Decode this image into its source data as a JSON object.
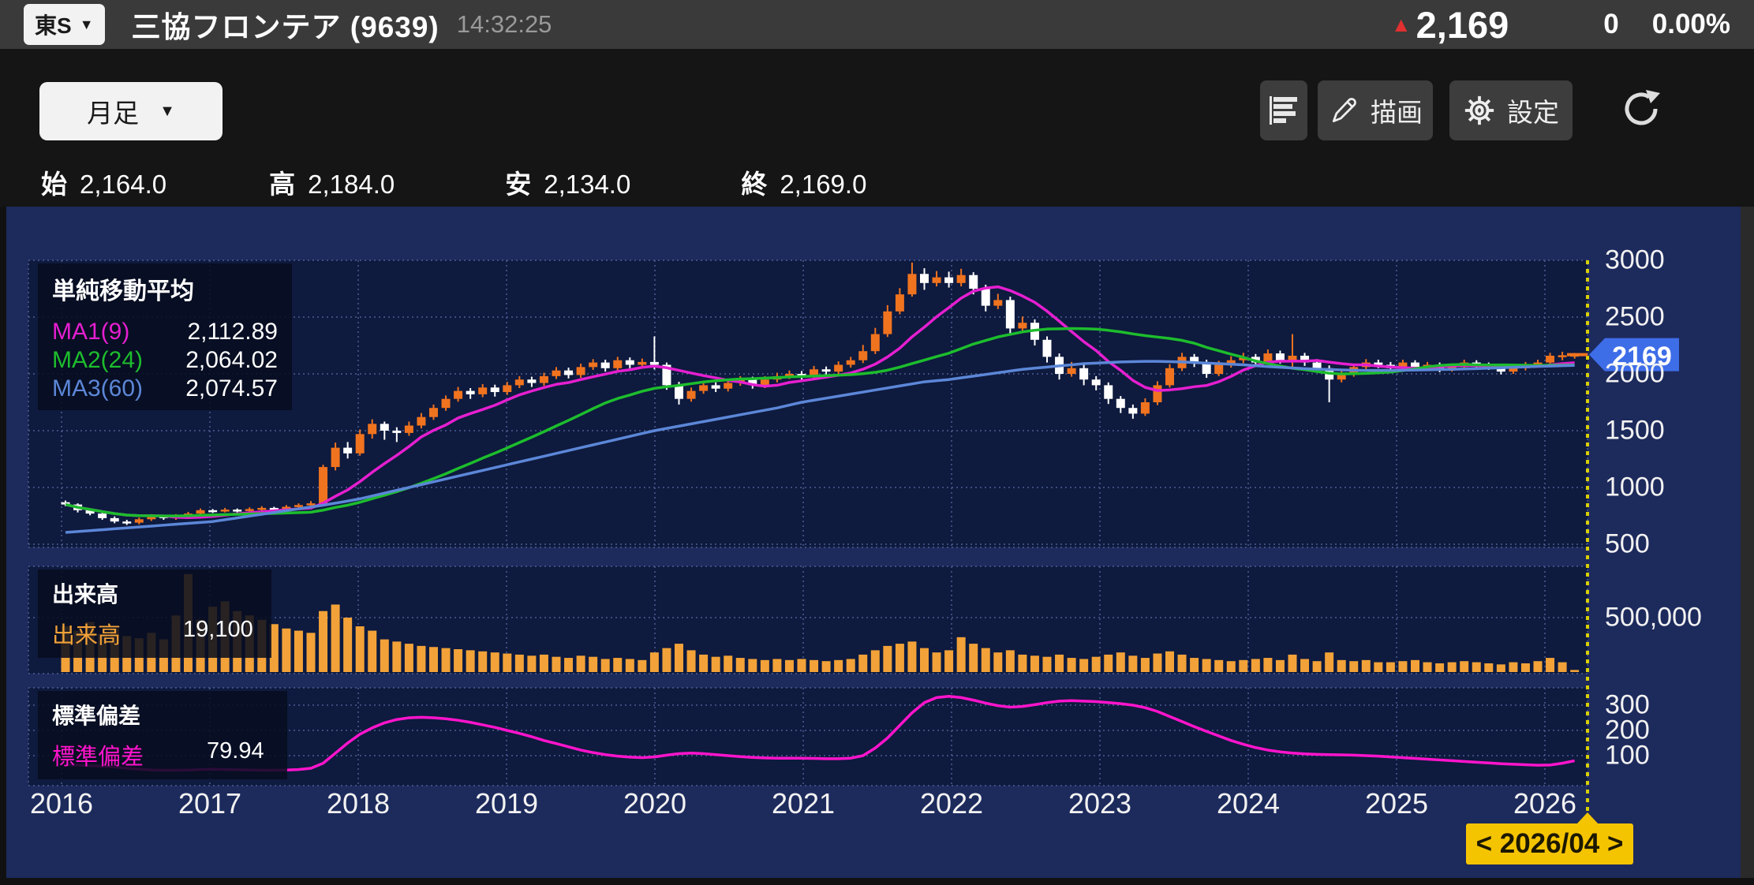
{
  "header": {
    "market_badge": "東S",
    "dropdown_symbol": "▼",
    "stock_title": "三協フロンテア (9639)",
    "time": "14:32:25",
    "up_symbol": "▲",
    "price": "2,169",
    "change": "0",
    "change_percent": "0.00%"
  },
  "toolbar": {
    "timeframe": "月足",
    "dropdown_symbol": "▼",
    "draw": "描画",
    "settings": "設定"
  },
  "ohlc": {
    "open_label": "始",
    "open_value": "2,164.0",
    "high_label": "高",
    "high_value": "2,184.0",
    "low_label": "安",
    "low_value": "2,134.0",
    "close_label": "終",
    "close_value": "2,169.0"
  },
  "ma_legend": {
    "title": "単純移動平均",
    "items": [
      {
        "label": "MA1(9)",
        "value": "2,112.89",
        "color": "#e51fd0"
      },
      {
        "label": "MA2(24)",
        "value": "2,064.02",
        "color": "#1dbd2d"
      },
      {
        "label": "MA3(60)",
        "value": "2,074.57",
        "color": "#5c87d8"
      }
    ]
  },
  "volume_legend": {
    "title": "出来高",
    "label": "出来高",
    "value": "19,100"
  },
  "stddev_legend": {
    "title": "標準偏差",
    "label": "標準偏差",
    "value": "79.94"
  },
  "price_tag": "2169",
  "date_nav": "< 2026/04 >",
  "chart_data": {
    "type": "candlestick+volume+line",
    "interval": "month",
    "start": "2016-01",
    "end": "2026-04",
    "title": "三協フロンテア (9639) 月足",
    "legend_position": "top-left",
    "grid": true,
    "price_ticks": [
      3000,
      2500,
      2000,
      1500,
      1000,
      500
    ],
    "price_range": [
      330,
      3050
    ],
    "volume_ticks": [
      {
        "label": "500,000",
        "value": 500000
      }
    ],
    "stddev_ticks": [
      300,
      200,
      100
    ],
    "years": [
      2016,
      2017,
      2018,
      2019,
      2020,
      2021,
      2022,
      2023,
      2024,
      2025,
      2026
    ],
    "current_price": 2169,
    "current_month_label": "2026/04",
    "ma_periods": [
      9,
      24,
      60
    ],
    "colors": {
      "up_candle": "#f0731f",
      "down_candle": "#ffffff",
      "volume_bar": "#f2a238",
      "ma1": "#e51fd0",
      "ma2": "#1dbd2d",
      "ma3": "#5c87d8",
      "stddev_line": "#ff14cc",
      "price_tag_bg": "#3e6de8",
      "date_tag_bg": "#f5c400",
      "grid": "#4d5d92",
      "pane_bg": "#0e1a3e",
      "frame_bg": "#1d2a5c",
      "current_line": "#d8d000"
    },
    "candles": [
      [
        870,
        885,
        835,
        850
      ],
      [
        850,
        860,
        780,
        800
      ],
      [
        800,
        815,
        755,
        770
      ],
      [
        770,
        785,
        715,
        730
      ],
      [
        730,
        745,
        685,
        700
      ],
      [
        700,
        715,
        670,
        690
      ],
      [
        690,
        735,
        675,
        720
      ],
      [
        720,
        765,
        705,
        750
      ],
      [
        750,
        760,
        715,
        730
      ],
      [
        730,
        765,
        715,
        750
      ],
      [
        750,
        785,
        735,
        770
      ],
      [
        770,
        815,
        755,
        800
      ],
      [
        800,
        810,
        775,
        790
      ],
      [
        790,
        820,
        780,
        805
      ],
      [
        805,
        815,
        780,
        795
      ],
      [
        795,
        825,
        785,
        810
      ],
      [
        810,
        835,
        795,
        820
      ],
      [
        820,
        830,
        795,
        810
      ],
      [
        810,
        845,
        800,
        830
      ],
      [
        830,
        860,
        815,
        845
      ],
      [
        845,
        880,
        830,
        860
      ],
      [
        860,
        1200,
        850,
        1180
      ],
      [
        1180,
        1395,
        1150,
        1350
      ],
      [
        1350,
        1400,
        1255,
        1300
      ],
      [
        1300,
        1510,
        1280,
        1470
      ],
      [
        1470,
        1600,
        1430,
        1560
      ],
      [
        1560,
        1580,
        1420,
        1500
      ],
      [
        1500,
        1530,
        1400,
        1480
      ],
      [
        1480,
        1580,
        1455,
        1545
      ],
      [
        1545,
        1655,
        1520,
        1620
      ],
      [
        1620,
        1730,
        1595,
        1700
      ],
      [
        1700,
        1810,
        1675,
        1780
      ],
      [
        1780,
        1885,
        1755,
        1850
      ],
      [
        1850,
        1875,
        1780,
        1820
      ],
      [
        1820,
        1910,
        1795,
        1880
      ],
      [
        1880,
        1905,
        1800,
        1840
      ],
      [
        1840,
        1930,
        1815,
        1900
      ],
      [
        1900,
        1980,
        1875,
        1950
      ],
      [
        1950,
        1975,
        1885,
        1920
      ],
      [
        1920,
        2010,
        1895,
        1980
      ],
      [
        1980,
        2060,
        1955,
        2030
      ],
      [
        2030,
        2055,
        1960,
        1990
      ],
      [
        1990,
        2090,
        1965,
        2060
      ],
      [
        2060,
        2130,
        2035,
        2100
      ],
      [
        2100,
        2125,
        2020,
        2050
      ],
      [
        2050,
        2150,
        2025,
        2120
      ],
      [
        2120,
        2145,
        2050,
        2080
      ],
      [
        2080,
        2135,
        2055,
        2105
      ],
      [
        2105,
        2330,
        2040,
        2080
      ],
      [
        2080,
        2100,
        1860,
        1900
      ],
      [
        1900,
        1930,
        1730,
        1780
      ],
      [
        1780,
        1880,
        1755,
        1850
      ],
      [
        1850,
        1930,
        1825,
        1900
      ],
      [
        1900,
        1925,
        1840,
        1870
      ],
      [
        1870,
        1950,
        1845,
        1920
      ],
      [
        1920,
        1980,
        1895,
        1950
      ],
      [
        1950,
        1975,
        1870,
        1900
      ],
      [
        1900,
        1980,
        1875,
        1950
      ],
      [
        1950,
        2010,
        1925,
        1980
      ],
      [
        1980,
        2030,
        1955,
        2000
      ],
      [
        2000,
        2025,
        1950,
        1980
      ],
      [
        1980,
        2070,
        1955,
        2040
      ],
      [
        2040,
        2065,
        1990,
        2020
      ],
      [
        2020,
        2110,
        1995,
        2080
      ],
      [
        2080,
        2150,
        2055,
        2120
      ],
      [
        2120,
        2255,
        2095,
        2200
      ],
      [
        2200,
        2405,
        2175,
        2350
      ],
      [
        2350,
        2605,
        2325,
        2550
      ],
      [
        2550,
        2755,
        2525,
        2700
      ],
      [
        2700,
        2980,
        2680,
        2880
      ],
      [
        2880,
        2930,
        2740,
        2800
      ],
      [
        2800,
        2905,
        2770,
        2850
      ],
      [
        2850,
        2900,
        2760,
        2800
      ],
      [
        2800,
        2925,
        2770,
        2870
      ],
      [
        2870,
        2895,
        2700,
        2750
      ],
      [
        2750,
        2785,
        2550,
        2600
      ],
      [
        2600,
        2705,
        2570,
        2650
      ],
      [
        2650,
        2680,
        2350,
        2400
      ],
      [
        2400,
        2505,
        2370,
        2450
      ],
      [
        2450,
        2480,
        2250,
        2300
      ],
      [
        2300,
        2330,
        2100,
        2150
      ],
      [
        2150,
        2180,
        1950,
        2000
      ],
      [
        2000,
        2105,
        1975,
        2050
      ],
      [
        2050,
        2080,
        1900,
        1950
      ],
      [
        1950,
        1980,
        1855,
        1900
      ],
      [
        1900,
        1925,
        1735,
        1780
      ],
      [
        1780,
        1805,
        1655,
        1700
      ],
      [
        1700,
        1730,
        1605,
        1650
      ],
      [
        1650,
        1785,
        1630,
        1750
      ],
      [
        1750,
        1935,
        1725,
        1900
      ],
      [
        1900,
        2085,
        1880,
        2050
      ],
      [
        2050,
        2185,
        2025,
        2150
      ],
      [
        2150,
        2175,
        2060,
        2100
      ],
      [
        2100,
        2125,
        1965,
        2000
      ],
      [
        2000,
        2115,
        1980,
        2080
      ],
      [
        2080,
        2155,
        2055,
        2120
      ],
      [
        2120,
        2185,
        2095,
        2150
      ],
      [
        2150,
        2175,
        2070,
        2100
      ],
      [
        2100,
        2215,
        2080,
        2180
      ],
      [
        2180,
        2205,
        2090,
        2120
      ],
      [
        2120,
        2350,
        2050,
        2160
      ],
      [
        2160,
        2185,
        2070,
        2100
      ],
      [
        2100,
        2130,
        2020,
        2050
      ],
      [
        2050,
        2075,
        1750,
        1950
      ],
      [
        1950,
        2025,
        1925,
        2000
      ],
      [
        2000,
        2085,
        1975,
        2060
      ],
      [
        2060,
        2130,
        2035,
        2100
      ],
      [
        2100,
        2125,
        2050,
        2080
      ],
      [
        2080,
        2105,
        2020,
        2050
      ],
      [
        2050,
        2125,
        2030,
        2100
      ],
      [
        2100,
        2120,
        2035,
        2060
      ],
      [
        2060,
        2105,
        2040,
        2080
      ],
      [
        2080,
        2100,
        2015,
        2040
      ],
      [
        2040,
        2085,
        2020,
        2060
      ],
      [
        2060,
        2125,
        2040,
        2100
      ],
      [
        2100,
        2120,
        2055,
        2080
      ],
      [
        2080,
        2100,
        2035,
        2060
      ],
      [
        2060,
        2080,
        1995,
        2020
      ],
      [
        2020,
        2075,
        2000,
        2050
      ],
      [
        2050,
        2105,
        2030,
        2080
      ],
      [
        2080,
        2125,
        2055,
        2100
      ],
      [
        2100,
        2185,
        2080,
        2160
      ],
      [
        2160,
        2195,
        2120,
        2164
      ],
      [
        2164,
        2184,
        2134,
        2169
      ]
    ],
    "volumes": [
      420000,
      380000,
      460000,
      350000,
      400000,
      330000,
      310000,
      360000,
      300000,
      520000,
      900000,
      480000,
      600000,
      650000,
      560000,
      520000,
      480000,
      440000,
      400000,
      380000,
      360000,
      560000,
      620000,
      500000,
      420000,
      380000,
      300000,
      280000,
      260000,
      240000,
      230000,
      220000,
      210000,
      200000,
      190000,
      180000,
      170000,
      160000,
      150000,
      160000,
      140000,
      130000,
      150000,
      140000,
      120000,
      130000,
      120000,
      110000,
      180000,
      220000,
      260000,
      200000,
      160000,
      140000,
      150000,
      130000,
      120000,
      110000,
      120000,
      110000,
      120000,
      110000,
      100000,
      110000,
      120000,
      160000,
      200000,
      240000,
      260000,
      280000,
      220000,
      180000,
      200000,
      320000,
      260000,
      220000,
      180000,
      200000,
      160000,
      150000,
      140000,
      160000,
      130000,
      120000,
      140000,
      160000,
      180000,
      150000,
      130000,
      170000,
      190000,
      160000,
      130000,
      120000,
      110000,
      100000,
      110000,
      120000,
      130000,
      110000,
      160000,
      120000,
      100000,
      180000,
      110000,
      100000,
      110000,
      90000,
      90000,
      100000,
      110000,
      90000,
      80000,
      90000,
      100000,
      90000,
      80000,
      70000,
      90000,
      80000,
      100000,
      130000,
      90000,
      19100
    ],
    "stddev": [
      65,
      62,
      60,
      58,
      55,
      50,
      46,
      43,
      42,
      42,
      43,
      45,
      46,
      45,
      44,
      43,
      42,
      42,
      43,
      45,
      50,
      70,
      110,
      150,
      185,
      210,
      230,
      243,
      250,
      252,
      250,
      246,
      240,
      232,
      222,
      212,
      200,
      188,
      175,
      160,
      148,
      135,
      122,
      112,
      104,
      98,
      94,
      92,
      95,
      102,
      108,
      110,
      108,
      104,
      100,
      96,
      93,
      91,
      90,
      90,
      90,
      89,
      88,
      88,
      90,
      100,
      130,
      170,
      220,
      270,
      310,
      330,
      335,
      330,
      320,
      308,
      298,
      292,
      295,
      302,
      310,
      316,
      318,
      316,
      314,
      310,
      306,
      300,
      290,
      275,
      255,
      235,
      215,
      196,
      178,
      160,
      145,
      132,
      122,
      115,
      110,
      107,
      105,
      104,
      103,
      102,
      100,
      98,
      95,
      92,
      89,
      86,
      83,
      80,
      77,
      74,
      71,
      68,
      66,
      64,
      62,
      63,
      70,
      79.94
    ],
    "ma3": [
      604,
      612,
      620,
      628,
      636,
      644,
      652,
      660,
      668,
      676,
      684,
      692,
      700,
      716,
      732,
      748,
      764,
      780,
      796,
      812,
      828,
      844,
      862,
      880,
      900,
      925,
      950,
      975,
      1000,
      1025,
      1050,
      1075,
      1100,
      1125,
      1150,
      1175,
      1200,
      1225,
      1250,
      1275,
      1300,
      1325,
      1350,
      1375,
      1400,
      1425,
      1450,
      1475,
      1500,
      1520,
      1540,
      1560,
      1580,
      1600,
      1620,
      1640,
      1660,
      1680,
      1700,
      1725,
      1750,
      1768,
      1786,
      1804,
      1822,
      1840,
      1858,
      1876,
      1894,
      1912,
      1930,
      1940,
      1950,
      1965,
      1980,
      1995,
      2010,
      2025,
      2040,
      2050,
      2060,
      2070,
      2080,
      2090,
      2095,
      2100,
      2105,
      2108,
      2110,
      2110,
      2108,
      2105,
      2100,
      2095,
      2090,
      2085,
      2080,
      2072,
      2064,
      2058,
      2052,
      2046,
      2042,
      2038,
      2035,
      2032,
      2030,
      2030,
      2030,
      2032,
      2034,
      2036,
      2038,
      2040,
      2043,
      2046,
      2050,
      2054,
      2058,
      2062,
      2066,
      2069,
      2072,
      2074.57
    ]
  }
}
